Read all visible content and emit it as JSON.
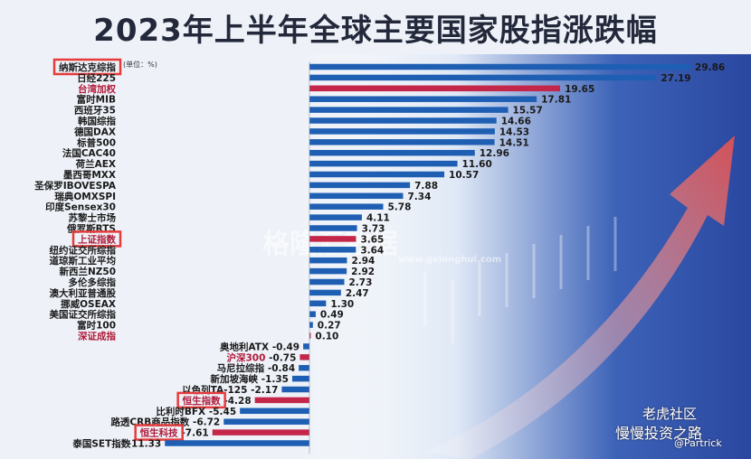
{
  "title": "2023年上半年全球主要国家股指涨跌幅",
  "unit_note": "(单位：%)",
  "watermark": {
    "brand": "格隆汇数据",
    "url": "www.gelonghui.com"
  },
  "signature": {
    "line1": "老虎社区",
    "line2": "慢慢投资之路",
    "line3": "@Partrick"
  },
  "colors": {
    "normal": "#1f5fb3",
    "highlight": "#c4264a",
    "box": "#e63b3b"
  },
  "chart_data": {
    "type": "bar",
    "orientation": "horizontal",
    "title": "2023年上半年全球主要国家股指涨跌幅",
    "unit": "%",
    "categories": [
      "纳斯达克综指",
      "日经225",
      "台湾加权",
      "富时MIB",
      "西班牙35",
      "韩国综指",
      "德国DAX",
      "标普500",
      "法国CAC40",
      "荷兰AEX",
      "墨西哥MXX",
      "圣保罗IBOVESPA",
      "瑞典OMXSPI",
      "印度Sensex30",
      "苏黎士市场",
      "俄罗斯RTS",
      "上证指数",
      "纽约证交所综指",
      "道琼斯工业平均",
      "新西兰NZ50",
      "多伦多综指",
      "澳大利亚普通股",
      "挪威OSEAX",
      "美国证交所综指",
      "富时100",
      "深证成指",
      "奥地利ATX",
      "沪深300",
      "马尼拉综指",
      "新加坡海峡",
      "以色列TA-125",
      "恒生指数",
      "比利时BFX",
      "路透CRB商品指数",
      "恒生科技",
      "泰国SET指数"
    ],
    "values": [
      29.86,
      27.19,
      19.65,
      17.81,
      15.57,
      14.66,
      14.53,
      14.51,
      12.96,
      11.6,
      10.57,
      7.88,
      7.34,
      5.78,
      4.11,
      3.73,
      3.65,
      3.64,
      2.94,
      2.92,
      2.73,
      2.47,
      1.3,
      0.49,
      0.27,
      0.1,
      -0.49,
      -0.75,
      -0.84,
      -1.35,
      -2.17,
      -4.28,
      -5.45,
      -6.72,
      -7.61,
      -11.33
    ],
    "value_labels": [
      "29.86",
      "27.19",
      "19.65",
      "17.81",
      "15.57",
      "14.66",
      "14.53",
      "14.51",
      "12.96",
      "11.60",
      "10.57",
      "7.88",
      "7.34",
      "5.78",
      "4.11",
      "3.73",
      "3.65",
      "3.64",
      "2.94",
      "2.92",
      "2.73",
      "2.47",
      "1.30",
      "0.49",
      "0.27",
      "0.10",
      "-0.49",
      "-0.75",
      "-0.84",
      "-1.35",
      "-2.17",
      "-4.28",
      "-5.45",
      "-6.72",
      "-7.61",
      "-11.33"
    ],
    "highlight_bars": [
      "台湾加权",
      "上证指数",
      "深证成指",
      "沪深300",
      "恒生指数",
      "恒生科技"
    ],
    "boxed_labels": [
      "纳斯达克综指",
      "上证指数",
      "恒生指数",
      "恒生科技"
    ]
  }
}
